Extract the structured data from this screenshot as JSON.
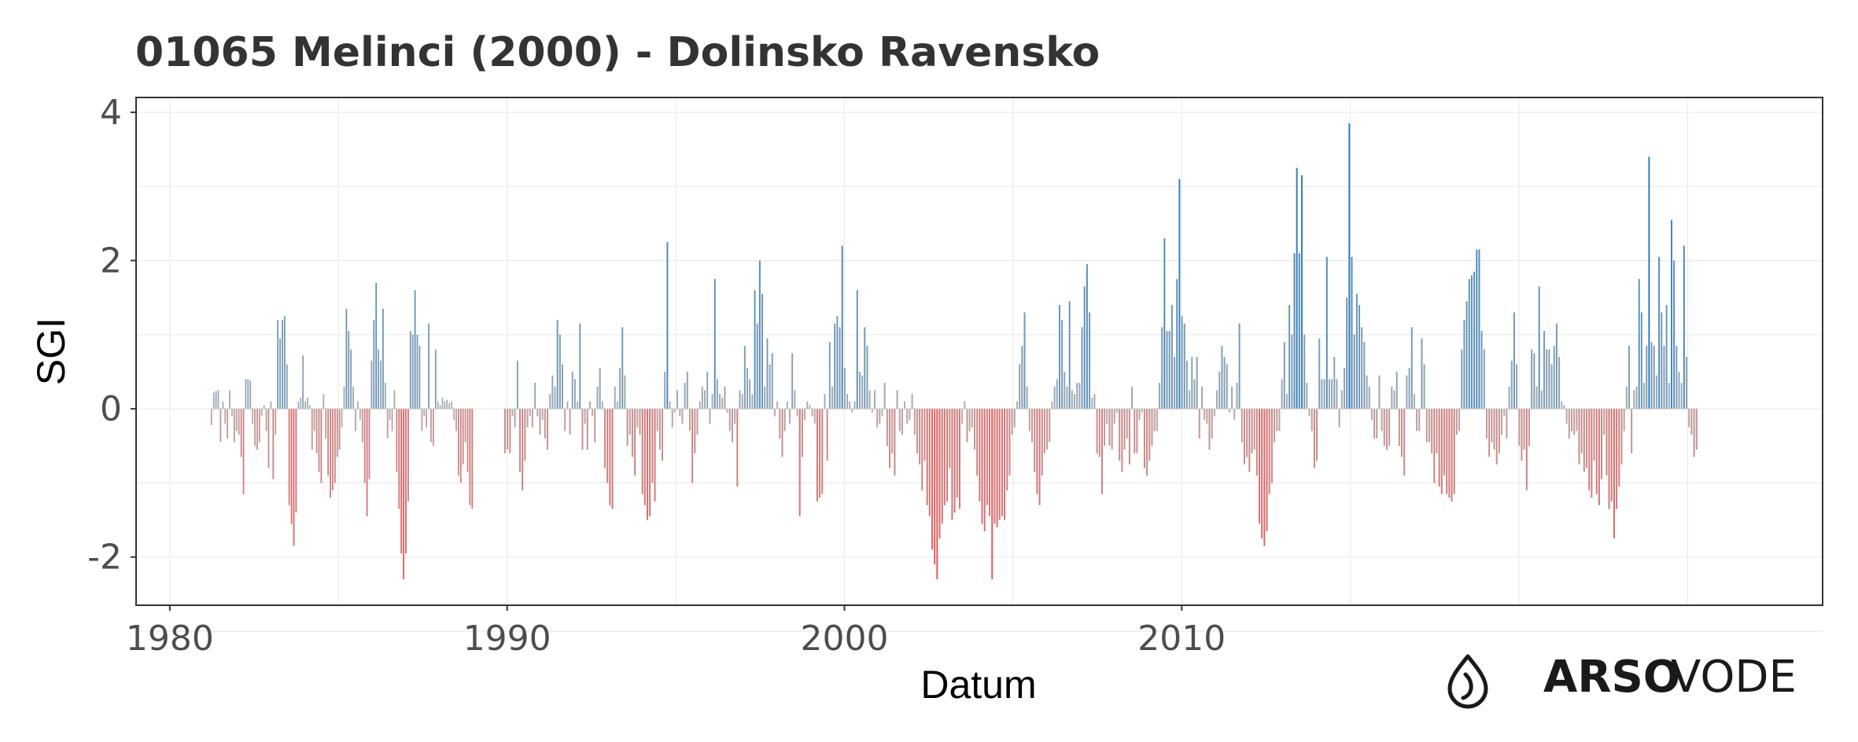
{
  "chart_data": {
    "type": "bar",
    "title": "01065 Melinci (2000) - Dolinsko Ravensko",
    "xlabel": "Datum",
    "ylabel": "SGI",
    "x_ticks": [
      "1980",
      "1990",
      "2000",
      "2010"
    ],
    "y_ticks": [
      "-2",
      "0",
      "2",
      "4"
    ],
    "xlim": [
      1979.0,
      2029.0
    ],
    "ylim": [
      -2.65,
      4.2
    ],
    "colors": {
      "positive": "#2b7bba",
      "negative": "#e05a5a",
      "neutral": "#b3b3b3"
    },
    "segments": [
      {
        "start": 1981.2,
        "end": 1989.0,
        "values": [
          -0.22,
          0.22,
          0.24,
          0.25,
          -0.45,
          0.1,
          -0.2,
          -0.4,
          0.25,
          -0.1,
          -0.45,
          -0.3,
          -0.35,
          -0.65,
          -1.15,
          0.4,
          0.4,
          0.38,
          -0.2,
          -0.5,
          -0.55,
          -0.45,
          -0.1,
          0.05,
          -0.3,
          -0.8,
          0.1,
          -0.95,
          -0.35,
          1.2,
          0.95,
          1.2,
          1.25,
          0.6,
          -1.3,
          -1.55,
          -1.85,
          -1.4,
          0.1,
          0.15,
          0.72,
          0.1,
          0.15,
          0.05,
          -0.55,
          -0.3,
          -0.6,
          -0.85,
          -1.0,
          0.2,
          -0.4,
          -0.9,
          -1.2,
          -1.1,
          -1.0,
          -0.65,
          -0.55,
          -0.25,
          0.3,
          1.35,
          1.05,
          0.8,
          0.3,
          -0.3,
          0.1,
          -0.15,
          -0.45,
          -1.0,
          -1.45,
          -0.95,
          0.65,
          1.2,
          1.7,
          0.8,
          0.65,
          1.35,
          0.35,
          -0.4,
          -0.15,
          -0.3,
          0.25,
          -0.85,
          -1.35,
          -1.95,
          -2.3,
          -1.95,
          -1.25,
          1.05,
          1.0,
          1.6,
          1.0,
          0.85,
          -0.3,
          -0.1,
          -0.25,
          1.15,
          -0.45,
          -0.5,
          0.8,
          0.1,
          0.05,
          0.15,
          0.1,
          0.12,
          0.08,
          0.1,
          -0.15,
          -0.3,
          -0.9,
          -1.0,
          -0.75,
          -0.45,
          -0.85,
          -1.3,
          -1.35
        ]
      },
      {
        "start": 1989.9,
        "end": 2025.3,
        "values": [
          -0.6,
          -0.55,
          -0.6,
          -0.1,
          -0.25,
          0.65,
          -0.85,
          -1.1,
          -0.7,
          -0.25,
          -0.1,
          -0.25,
          0.35,
          -0.1,
          -0.35,
          -0.15,
          -0.4,
          -0.55,
          0.2,
          0.45,
          0.3,
          1.2,
          1.0,
          0.6,
          -0.3,
          0.1,
          -0.35,
          0.5,
          0.4,
          0.1,
          1.15,
          -0.55,
          -0.2,
          -0.55,
          0.1,
          -0.1,
          -0.45,
          0.3,
          0.55,
          0.1,
          -0.8,
          -1.0,
          -1.3,
          -1.35,
          0.3,
          0.1,
          0.55,
          1.1,
          0.45,
          -0.5,
          -0.35,
          -0.65,
          -0.9,
          -0.25,
          -0.35,
          -1.15,
          -1.3,
          -1.5,
          -1.45,
          -1.0,
          -1.25,
          -0.3,
          -0.55,
          -0.7,
          0.5,
          2.25,
          0.1,
          -0.25,
          -0.05,
          0.25,
          -0.1,
          -0.2,
          0.35,
          0.5,
          -0.3,
          -1.0,
          -0.6,
          -0.35,
          0.1,
          0.3,
          0.25,
          0.5,
          -0.2,
          0.2,
          1.75,
          0.4,
          0.2,
          0.15,
          0.3,
          -0.05,
          -0.3,
          -0.45,
          -0.2,
          -1.05,
          0.25,
          0.2,
          0.85,
          0.55,
          0.4,
          0.2,
          1.6,
          1.15,
          2.0,
          1.55,
          0.3,
          0.95,
          0.6,
          0.75,
          -0.1,
          0.1,
          -0.4,
          -0.65,
          -0.3,
          0.1,
          -0.2,
          0.75,
          0.25,
          -0.1,
          -1.45,
          -0.65,
          -0.15,
          0.1,
          0.05,
          -0.1,
          -0.2,
          -1.25,
          -1.2,
          -1.15,
          0.2,
          -0.7,
          0.9,
          0.3,
          1.15,
          1.25,
          1.1,
          2.2,
          0.55,
          0.2,
          0.1,
          -0.05,
          0.1,
          1.6,
          0.5,
          0.45,
          1.1,
          0.85,
          0.25,
          -0.05,
          0.25,
          -0.25,
          -0.2,
          -0.1,
          0.35,
          -0.5,
          -0.8,
          -0.6,
          -0.9,
          0.25,
          -0.3,
          -0.35,
          0.1,
          -0.2,
          -0.15,
          0.2,
          -0.35,
          -0.6,
          -0.75,
          -1.1,
          -0.7,
          -1.3,
          -1.45,
          -1.9,
          -2.1,
          -2.3,
          -1.75,
          -1.55,
          -1.3,
          -1.25,
          -0.8,
          -1.5,
          -1.4,
          -1.2,
          -1.35,
          -0.2,
          0.1,
          -0.45,
          -0.3,
          -0.25,
          -0.55,
          -0.9,
          -1.25,
          -1.55,
          -1.65,
          -1.3,
          -1.45,
          -2.3,
          -1.55,
          -1.6,
          -1.5,
          -1.45,
          -1.5,
          -1.1,
          -0.9,
          -0.35,
          -0.25,
          0.1,
          0.6,
          0.85,
          1.3,
          0.3,
          -0.3,
          -0.45,
          -0.85,
          -1.15,
          -1.3,
          -0.9,
          -0.6,
          -0.55,
          -0.45,
          0.1,
          0.3,
          0.4,
          1.4,
          1.2,
          0.5,
          0.3,
          1.45,
          0.25,
          0.2,
          0.35,
          0.35,
          1.1,
          1.65,
          1.95,
          1.3,
          0.15,
          0.2,
          -0.6,
          -0.65,
          -1.15,
          -0.5,
          -0.2,
          -0.5,
          -0.55,
          -0.2,
          -0.05,
          -0.7,
          -0.85,
          -0.55,
          -0.4,
          -0.75,
          0.3,
          -0.6,
          -0.6,
          -0.15,
          -0.05,
          -0.8,
          -0.9,
          -0.7,
          -0.5,
          -0.3,
          -0.3,
          0.35,
          1.1,
          2.3,
          1.05,
          1.05,
          1.4,
          0.7,
          1.75,
          3.1,
          1.25,
          1.15,
          0.65,
          0.25,
          0.7,
          0.4,
          0.7,
          -0.4,
          0.3,
          -0.15,
          -0.2,
          -0.55,
          -0.4,
          -0.1,
          0.25,
          0.5,
          0.85,
          0.7,
          0.6,
          -0.05,
          0.3,
          -0.15,
          0.35,
          1.15,
          -0.45,
          -0.75,
          -0.65,
          -0.85,
          -0.6,
          -0.55,
          -0.9,
          -1.55,
          -1.75,
          -1.85,
          -1.65,
          -1.15,
          -1.0,
          -0.45,
          -0.3,
          -0.3,
          0.4,
          0.9,
          0.2,
          1.4,
          1.0,
          2.1,
          3.25,
          2.1,
          3.15,
          1.0,
          0.35,
          -0.1,
          -0.3,
          -0.8,
          -0.7,
          0.95,
          0.4,
          0.4,
          2.05,
          0.4,
          0.4,
          0.7,
          0.4,
          -0.25,
          0.25,
          0.55,
          1.5,
          3.85,
          2.05,
          1.0,
          1.55,
          1.4,
          1.1,
          0.9,
          0.45,
          0.3,
          -0.15,
          -0.4,
          -0.4,
          0.45,
          -0.3,
          -0.5,
          -0.55,
          -0.5,
          0.3,
          0.25,
          0.5,
          -0.5,
          -0.65,
          -0.9,
          0.45,
          0.55,
          1.1,
          0.2,
          -0.3,
          -0.3,
          0.95,
          0.6,
          -0.45,
          -0.45,
          -0.6,
          -1.0,
          -0.6,
          -1.05,
          -1.15,
          -0.9,
          -1.15,
          -1.2,
          -1.25,
          -1.15,
          -0.35,
          -0.3,
          0.8,
          1.2,
          1.45,
          1.75,
          1.8,
          1.85,
          2.15,
          2.15,
          1.05,
          0.8,
          -0.4,
          -0.65,
          -0.45,
          -0.55,
          -0.75,
          -0.6,
          -0.35,
          -0.1,
          -0.4,
          0.3,
          0.65,
          1.3,
          0.6,
          -0.5,
          -0.7,
          -0.55,
          -1.1,
          -0.5,
          0.8,
          0.75,
          0.3,
          1.65,
          0.25,
          1.05,
          0.8,
          0.8,
          0.6,
          0.85,
          1.15,
          0.7,
          0.1,
          0.05,
          -0.2,
          -0.4,
          -0.3,
          -0.35,
          -0.3,
          -0.75,
          -0.6,
          -0.85,
          -0.8,
          -1.1,
          -1.2,
          -0.7,
          -1.15,
          -1.3,
          -0.95,
          -0.35,
          -0.9,
          -1.35,
          -1.25,
          -1.75,
          -1.35,
          -1.05,
          -0.75,
          -0.3,
          0.3,
          0.85,
          -0.6,
          0.25,
          0.3,
          1.75,
          1.3,
          0.35,
          0.85,
          3.4,
          0.9,
          0.85,
          0.45,
          2.05,
          1.3,
          0.85,
          1.4,
          0.35,
          2.55,
          2.0,
          0.85,
          0.5,
          0.35,
          2.2,
          0.7,
          -0.25,
          -0.35,
          -0.65,
          -0.55
        ]
      }
    ]
  },
  "logo": {
    "bold": "ARSO",
    "light": "VODE",
    "icon": "water-drop-icon"
  }
}
